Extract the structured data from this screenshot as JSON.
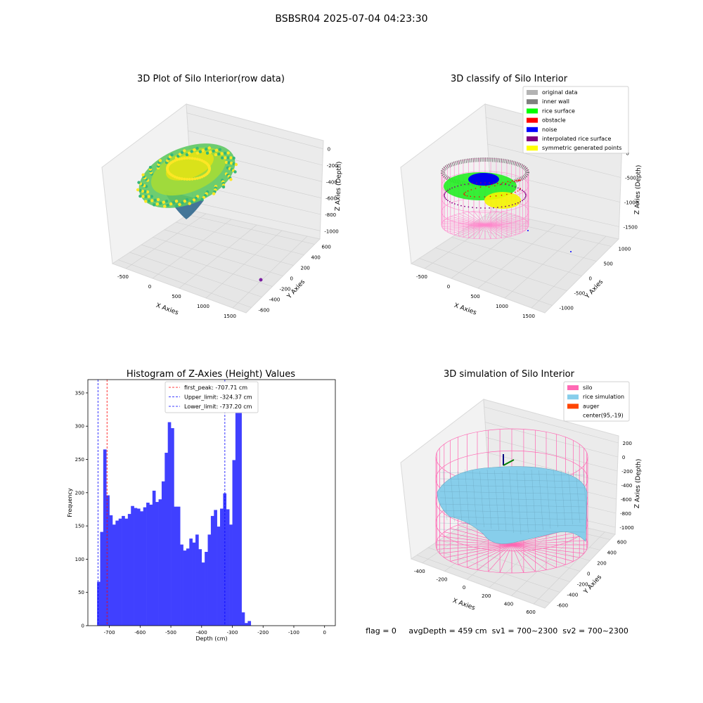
{
  "suptitle": "BSBSR04 2025-07-04 04:23:30",
  "footer": "flag = 0     avgDepth = 459 cm  sv1 = 700~2300  sv2 = 700~2300",
  "chart_data": [
    {
      "type": "scatter",
      "title": "3D Plot of Silo Interior(row data)",
      "xlabel": "X Axies",
      "ylabel": "Y Axies",
      "zlabel": "Z Axies (Depth)",
      "x_ticks": [
        "-500",
        "0",
        "500",
        "1000",
        "1500"
      ],
      "y_ticks": [
        "600",
        "400",
        "200",
        "0",
        "-200",
        "-400",
        "-600"
      ],
      "z_ticks": [
        "0",
        "-200",
        "-400",
        "-600",
        "-800",
        "-1000"
      ],
      "colormap": [
        "#440154",
        "#31688e",
        "#35b779",
        "#fde725"
      ],
      "outlier": {
        "x": 1500,
        "y": -650,
        "z": -1000,
        "color": "#7b1fa2"
      }
    },
    {
      "type": "scatter",
      "title": "3D classify of Silo Interior",
      "xlabel": "X Axies",
      "ylabel": "Y Axies",
      "zlabel": "Z Axies (Depth)",
      "x_ticks": [
        "-500",
        "0",
        "500",
        "1000",
        "1500"
      ],
      "y_ticks": [
        "1000",
        "500",
        "0",
        "-500",
        "-1000"
      ],
      "z_ticks": [
        "0",
        "-500",
        "-1000",
        "-1500"
      ],
      "legend_position": "top-right",
      "legend": [
        {
          "label": "original data",
          "color": "#b3b3b3"
        },
        {
          "label": "inner wall",
          "color": "#808080"
        },
        {
          "label": "rice surface",
          "color": "#00ff00"
        },
        {
          "label": "obstacle",
          "color": "#ff0000"
        },
        {
          "label": "noise",
          "color": "#0000ff"
        },
        {
          "label": "interpolated rice surface",
          "color": "#800080"
        },
        {
          "label": "symmetric generated points",
          "color": "#ffff00"
        }
      ]
    },
    {
      "type": "bar",
      "title": "Histogram of Z-Axies (Height) Values",
      "xlabel": "Depth (cm)",
      "ylabel": "Frequency",
      "xlim": [
        -770,
        35
      ],
      "ylim": [
        0,
        370
      ],
      "x_ticks": [
        -700,
        -600,
        -500,
        -400,
        -300,
        -200,
        -100,
        0
      ],
      "y_ticks": [
        0,
        50,
        100,
        150,
        200,
        250,
        300,
        350
      ],
      "bin_start": -740,
      "bin_width": 10.0,
      "color": "#4040ff",
      "values": [
        66,
        141,
        265,
        196,
        166,
        152,
        158,
        161,
        165,
        161,
        168,
        180,
        177,
        176,
        172,
        178,
        185,
        182,
        203,
        186,
        190,
        217,
        260,
        306,
        297,
        179,
        179,
        122,
        113,
        116,
        131,
        125,
        137,
        115,
        95,
        111,
        137,
        165,
        174,
        149,
        176,
        199,
        175,
        152,
        249,
        352,
        348,
        20,
        4,
        7
      ],
      "vlines": [
        {
          "label": "first_peak: -707.71 cm",
          "x": -707.71,
          "color": "#ff0000"
        },
        {
          "label": "Upper_limit: -324.37 cm",
          "x": -324.37,
          "color": "#0000ff"
        },
        {
          "label": "Lower_limit: -737.20 cm",
          "x": -737.2,
          "color": "#0000ff"
        }
      ],
      "legend_position": "top-center"
    },
    {
      "type": "scatter",
      "title": "3D simulation of Silo Interior",
      "xlabel": "X Axies",
      "ylabel": "Y Axies",
      "zlabel": "Z Axies (Depth)",
      "x_ticks": [
        "-400",
        "-200",
        "0",
        "200",
        "400",
        "600"
      ],
      "y_ticks": [
        "600",
        "400",
        "200",
        "0",
        "-200",
        "-400",
        "-600"
      ],
      "z_ticks": [
        "200",
        "0",
        "-200",
        "-400",
        "-600",
        "-800",
        "-1000"
      ],
      "legend_position": "top-right",
      "legend": [
        {
          "label": "silo",
          "color": "#ff69b4"
        },
        {
          "label": "rice simulation",
          "color": "#87ceeb"
        },
        {
          "label": "auger",
          "color": "#ff4500"
        },
        {
          "label": "center(95,-19)",
          "color": ""
        }
      ]
    }
  ]
}
